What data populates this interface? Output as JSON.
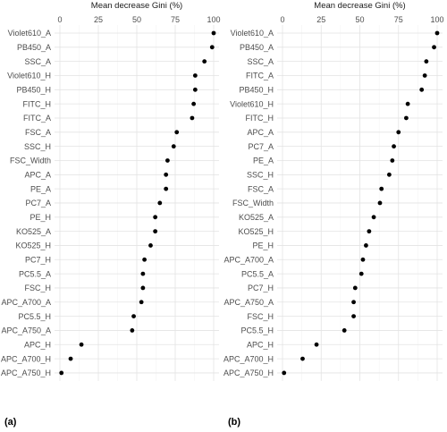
{
  "chart_data": [
    {
      "type": "scatter",
      "panel_label": "(a)",
      "xlabel": "Mean decrease Gini (%)",
      "xlim": [
        0,
        100
      ],
      "xticks": [
        0,
        25,
        50,
        75,
        100
      ],
      "grid": true,
      "categories": [
        "Violet610_A",
        "PB450_A",
        "SSC_A",
        "Violet610_H",
        "PB450_H",
        "FITC_H",
        "FITC_A",
        "FSC_A",
        "SSC_H",
        "FSC_Width",
        "APC_A",
        "PE_A",
        "PC7_A",
        "PE_H",
        "KO525_A",
        "KO525_H",
        "PC7_H",
        "PC5.5_A",
        "FSC_H",
        "APC_A700_A",
        "PC5.5_H",
        "APC_A750_A",
        "APC_H",
        "APC_A700_H",
        "APC_A750_H"
      ],
      "values": [
        100,
        99,
        94,
        88,
        88,
        87,
        86,
        76,
        74,
        70,
        69,
        69,
        65,
        62,
        62,
        59,
        55,
        54,
        54,
        53,
        48,
        47,
        14,
        7,
        1
      ]
    },
    {
      "type": "scatter",
      "panel_label": "(b)",
      "xlabel": "Mean decrease Gini (%)",
      "xlim": [
        0,
        100
      ],
      "xticks": [
        0,
        25,
        50,
        75,
        100
      ],
      "grid": true,
      "categories": [
        "Violet610_A",
        "PB450_A",
        "SSC_A",
        "FITC_A",
        "PB450_H",
        "Violet610_H",
        "FITC_H",
        "APC_A",
        "PC7_A",
        "PE_A",
        "SSC_H",
        "FSC_A",
        "FSC_Width",
        "KO525_A",
        "KO525_H",
        "PE_H",
        "APC_A700_A",
        "PC5.5_A",
        "PC7_H",
        "APC_A750_A",
        "FSC_H",
        "PC5.5_H",
        "APC_H",
        "APC_A700_H",
        "APC_A750_H"
      ],
      "values": [
        100,
        98,
        93,
        92,
        90,
        81,
        80,
        75,
        72,
        71,
        69,
        64,
        63,
        59,
        56,
        54,
        52,
        51,
        47,
        46,
        46,
        40,
        22,
        13,
        1
      ]
    }
  ]
}
